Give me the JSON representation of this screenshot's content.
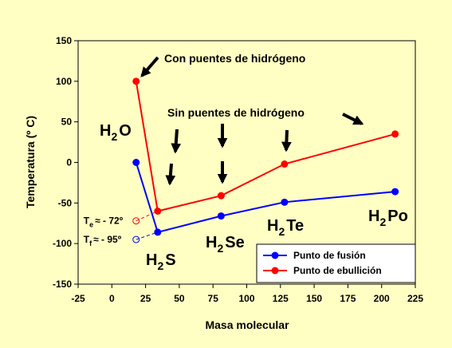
{
  "chart_data": {
    "type": "line",
    "xlabel": "Masa molecular",
    "ylabel": "Temperatura (º C)",
    "x": [
      18,
      34,
      81,
      128,
      210
    ],
    "xlim": [
      -25,
      225
    ],
    "xticks": [
      -25,
      0,
      25,
      50,
      75,
      100,
      125,
      150,
      175,
      200,
      225
    ],
    "ylim": [
      -150,
      150
    ],
    "yticks": [
      -150,
      -100,
      -50,
      0,
      50,
      100,
      150
    ],
    "series": [
      {
        "name": "Punto de fusión",
        "color": "#0000ff",
        "values": [
          0,
          -86,
          -66,
          -49,
          -36
        ],
        "estimate": {
          "x": 18,
          "value": -95,
          "label": [
            "T",
            "f",
            "≈ - 95º"
          ]
        }
      },
      {
        "name": "Punto de ebullición",
        "color": "#ff0000",
        "values": [
          100,
          -60,
          -41,
          -2,
          35
        ],
        "estimate": {
          "x": 18,
          "value": -72,
          "label": [
            "T",
            "e",
            "≈ - 72º"
          ]
        }
      }
    ],
    "annotations": [
      "Con puentes de hidrógeno",
      "Sin puentes de hidrógeno"
    ],
    "molecule_labels": [
      [
        "H",
        "2",
        "O"
      ],
      [
        "H",
        "2",
        "S"
      ],
      [
        "H",
        "2",
        "Se"
      ],
      [
        "H",
        "2",
        "Te"
      ],
      [
        "H",
        "2",
        "Po"
      ]
    ],
    "legend": "lower right"
  }
}
